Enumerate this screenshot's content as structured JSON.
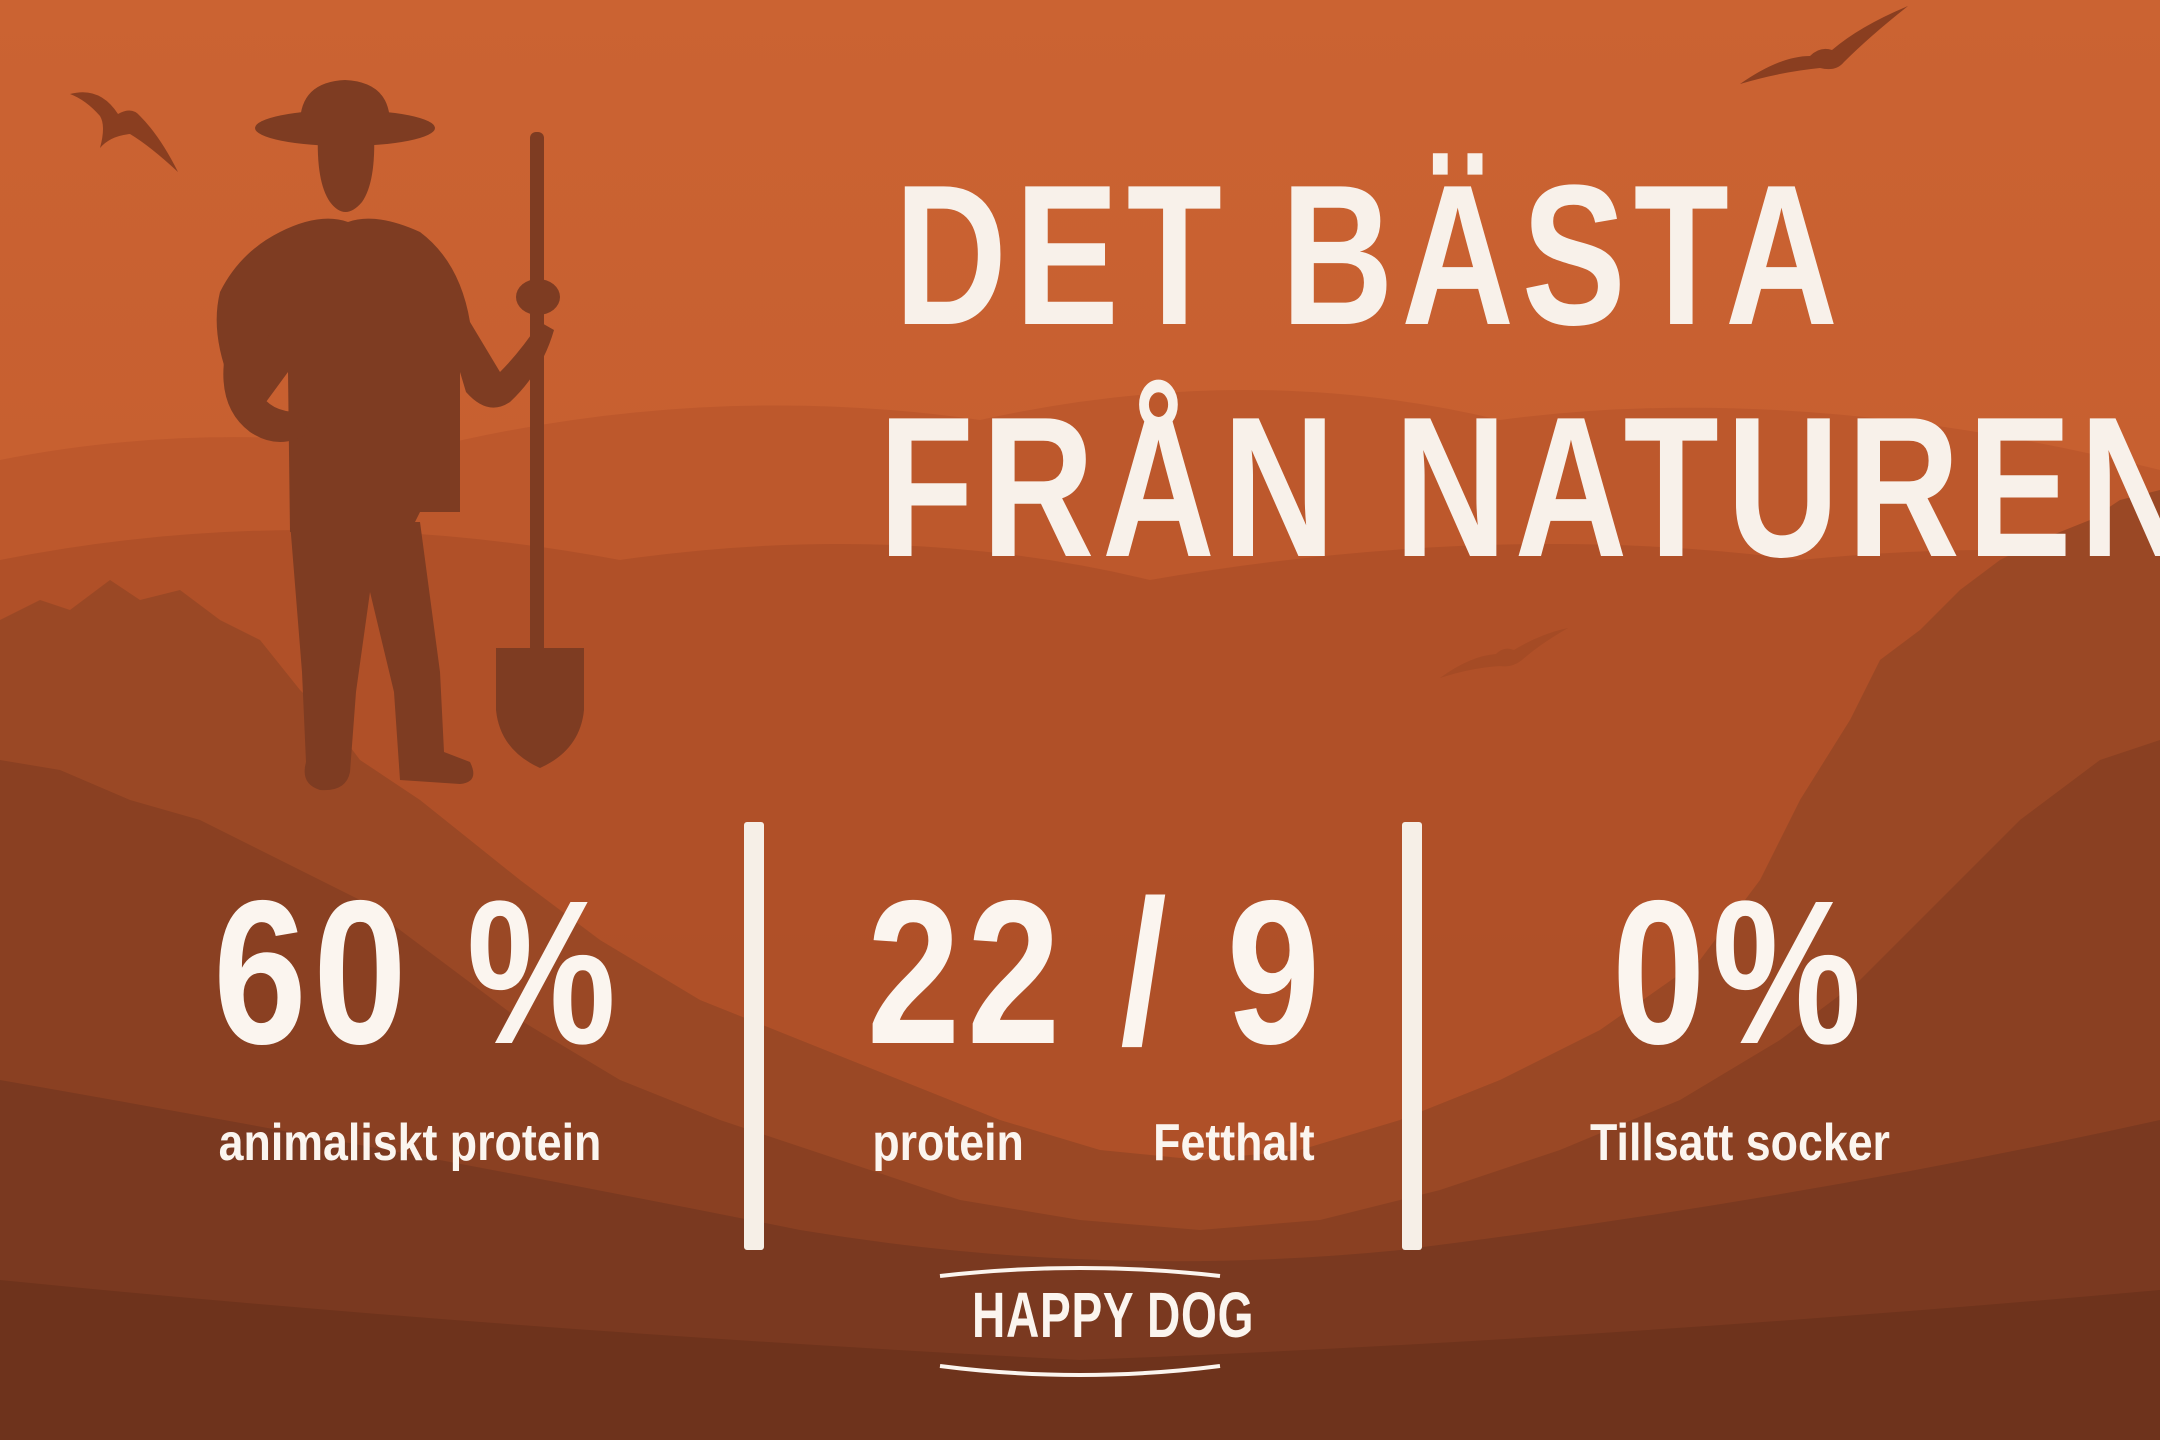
{
  "headline": {
    "line1": "DET BÄSTA",
    "line2": "FRÅN NATUREN"
  },
  "stats": [
    {
      "value": "60 %",
      "label": "animaliskt protein"
    },
    {
      "value": "22 / 9",
      "label_left": "protein",
      "label_right": "Fetthalt"
    },
    {
      "value": "0%",
      "label": "Tillsatt socker"
    }
  ],
  "logo": {
    "text": "HAPPY DOG"
  },
  "colors": {
    "sky": "#c65f30",
    "hills": "#9d4a27",
    "forest": "#7a3a20",
    "silhouette": "#7e3c22",
    "text": "#f8f1ea"
  },
  "icons": [
    "farmer-silhouette",
    "shovel-icon",
    "bird-icon"
  ]
}
